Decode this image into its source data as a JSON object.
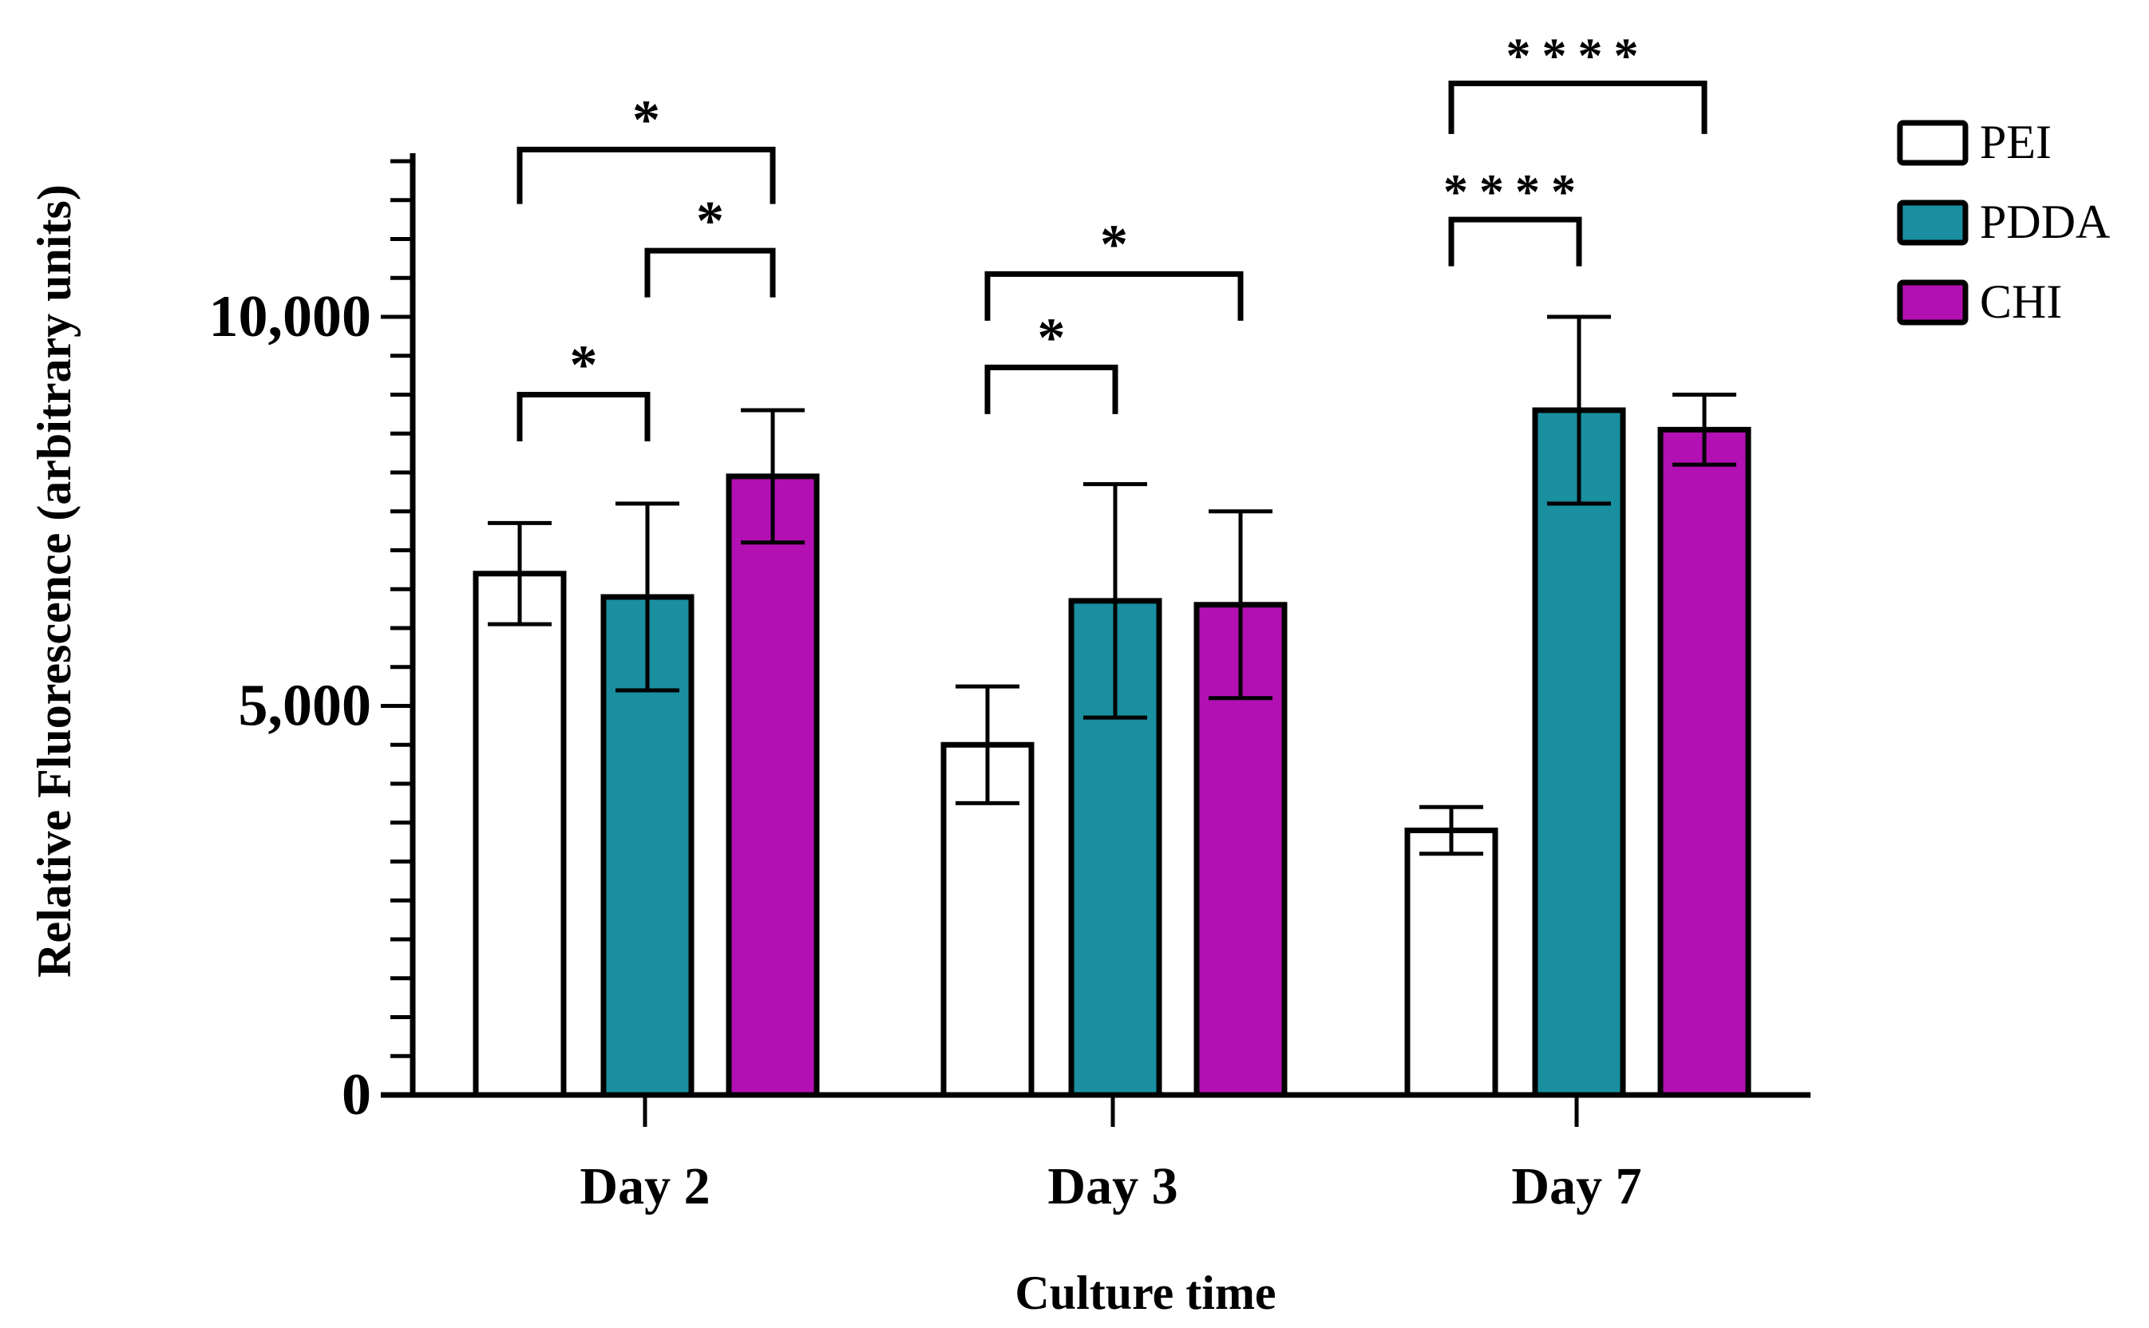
{
  "colors": {
    "PEI": "#ffffff",
    "PDDA": "#1a8fa0",
    "CHI": "#b310b3"
  },
  "chart_data": {
    "type": "bar",
    "title": "",
    "xlabel": "Culture time",
    "ylabel": "Relative Fluorescence (arbitrary units)",
    "ylim": [
      0,
      12000
    ],
    "yticks": [
      0,
      5000,
      10000
    ],
    "ytick_labels": [
      "0",
      "5,000",
      "10,000"
    ],
    "minor_tick_step": 500,
    "categories": [
      "Day 2",
      "Day 3",
      "Day 7"
    ],
    "series": [
      {
        "name": "PEI",
        "values": [
          6700,
          4500,
          3400
        ],
        "errors": [
          650,
          750,
          300
        ]
      },
      {
        "name": "PDDA",
        "values": [
          6400,
          6350,
          8800
        ],
        "errors": [
          1200,
          1500,
          1200
        ]
      },
      {
        "name": "CHI",
        "values": [
          7950,
          6300,
          8550
        ],
        "errors": [
          850,
          1200,
          450
        ]
      }
    ],
    "legend": {
      "position": "top-right",
      "entries": [
        "PEI",
        "PDDA",
        "CHI"
      ]
    },
    "significance": [
      {
        "category": "Day 2",
        "from": "PEI",
        "to": "CHI",
        "label": "*"
      },
      {
        "category": "Day 2",
        "from": "PDDA",
        "to": "CHI",
        "label": "*"
      },
      {
        "category": "Day 2",
        "from": "PEI",
        "to": "PDDA",
        "label": "*"
      },
      {
        "category": "Day 3",
        "from": "PEI",
        "to": "CHI",
        "label": "*"
      },
      {
        "category": "Day 3",
        "from": "PEI",
        "to": "PDDA",
        "label": "*"
      },
      {
        "category": "Day 7",
        "from": "PEI",
        "to": "CHI",
        "label": "****"
      },
      {
        "category": "Day 7",
        "from": "PEI",
        "to": "PDDA",
        "label": "****"
      }
    ]
  }
}
